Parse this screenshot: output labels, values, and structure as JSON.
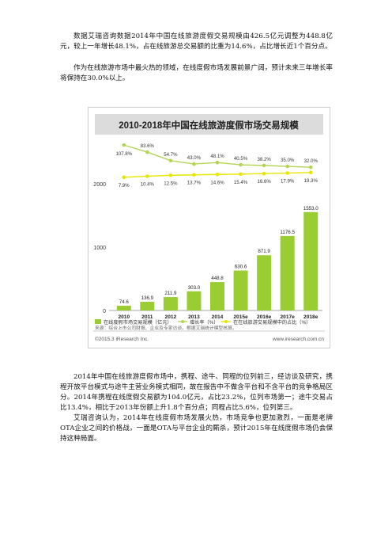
{
  "paragraphs": [
    "数据艾瑞咨询数据2014年中国在线旅游度假交易规模由426.5亿元调整为448.8亿元，较上一年增长48.1%，占在线旅游总交易额的比重为14.6%，占比增长近1个百分点。",
    "作为在线旅游市场中最火热的领域，在线度假市场发展前景广阔，预计未来三年增长率将保持在30.0%以上。",
    "2014年中国在线旅游度假市场中，携程、途牛、同程的位列前三，经访谈及研究，携程开放平台模式与途牛主营业务模式相同，故在报告中不做含平台和不含平台的竞争格局区分。2014年携程在线度假交易额为104.0亿元，占比23.2%，位列市场第一；途牛交易占比13.4%，相比于2013年份额上升1.8个百分点；同程占比5.6%，位列第三。",
    "艾瑞咨询认为，2014年在线度假市场发展火热，市场竞争也更加激烈，一面是老牌OTA企业之间的价格战，一面是OTA与平台企业的厮杀，预计2015年在线度假市场仍会保持这种局面。"
  ],
  "chart_data": {
    "type": "bar",
    "title": "2010-2018年中国在线旅游度假市场交易规模",
    "categories": [
      "2010",
      "2011",
      "2012",
      "2013",
      "2014",
      "2015e",
      "2016e",
      "2017e",
      "2018e"
    ],
    "series": [
      {
        "name": "在线度假市场交易规模（亿元）",
        "kind": "bar",
        "values": [
          74.6,
          136.9,
          211.9,
          303.0,
          448.8,
          630.6,
          871.9,
          1176.5,
          1553.0
        ],
        "labels": [
          "74.6",
          "136.9",
          "211.9",
          "303.0",
          "448.8",
          "630.6",
          "871.9",
          "1176.5",
          "1553.0"
        ],
        "color": "#9acd32"
      },
      {
        "name": "增长率（%）",
        "kind": "line",
        "values": [
          107.8,
          83.6,
          54.7,
          43.0,
          48.1,
          40.5,
          38.2,
          35.0,
          32.0
        ],
        "labels": [
          "107.8%",
          "83.6%",
          "54.7%",
          "43.0%",
          "48.1%",
          "40.5%",
          "38.2%",
          "35.0%",
          "32.0%"
        ],
        "color": "#b4d455"
      },
      {
        "name": "在在线旅游交易规模中的占比（%）",
        "kind": "line",
        "values": [
          7.9,
          10.4,
          12.5,
          13.7,
          14.6,
          15.4,
          16.6,
          17.9,
          19.3
        ],
        "labels": [
          "7.9%",
          "10.4%",
          "12.5%",
          "13.7%",
          "14.6%",
          "15.4%",
          "16.6%",
          "17.9%",
          "19.3%"
        ],
        "color": "#e6e600"
      }
    ],
    "y_ticks": [
      "0",
      "1000",
      "2000"
    ],
    "ylim": [
      0,
      2500
    ],
    "legend_position": "bottom",
    "source": "来源：综合上市公司财报、企业及专家访谈，根据艾瑞统计模型核算。",
    "copyright": "©2015.3 iResearch Inc.",
    "website": "www.iresearch.com.cn",
    "colors": {
      "title_bg": "#dcdcdc",
      "bar": "#9acd32",
      "growth_line": "#b4d455",
      "share_line": "#e6e600"
    }
  }
}
